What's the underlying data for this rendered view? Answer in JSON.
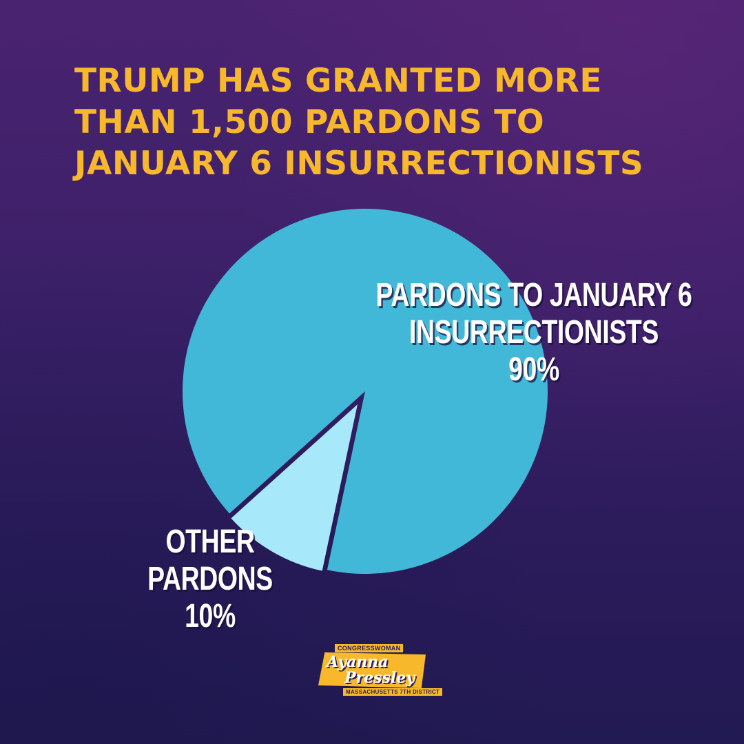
{
  "headline": "TRUMP HAS GRANTED MORE\nTHAN 1,500 PARDONS TO\nJANUARY 6 INSURRECTIONISTS",
  "colors": {
    "background_top": "#4a2370",
    "background_bottom": "#221a52",
    "headline": "#f7b82b",
    "slice_main": "#42b8d8",
    "slice_other": "#a8e8fb",
    "label_text": "#ffffff"
  },
  "chart_data": {
    "type": "pie",
    "title": "",
    "slices": [
      {
        "label_line1": "PARDONS TO JANUARY 6",
        "label_line2": "INSURRECTIONISTS",
        "percent_label": "90%",
        "value": 90,
        "color": "#42b8d8",
        "exploded": false
      },
      {
        "label_line1": "OTHER",
        "label_line2": "PARDONS",
        "percent_label": "10%",
        "value": 10,
        "color": "#a8e8fb",
        "exploded": true
      }
    ]
  },
  "logo": {
    "top_text": "CONGRESSWOMAN",
    "first_name": "Ayanna",
    "last_name": "Pressley",
    "bottom_text": "MASSACHUSETTS 7TH DISTRICT"
  }
}
